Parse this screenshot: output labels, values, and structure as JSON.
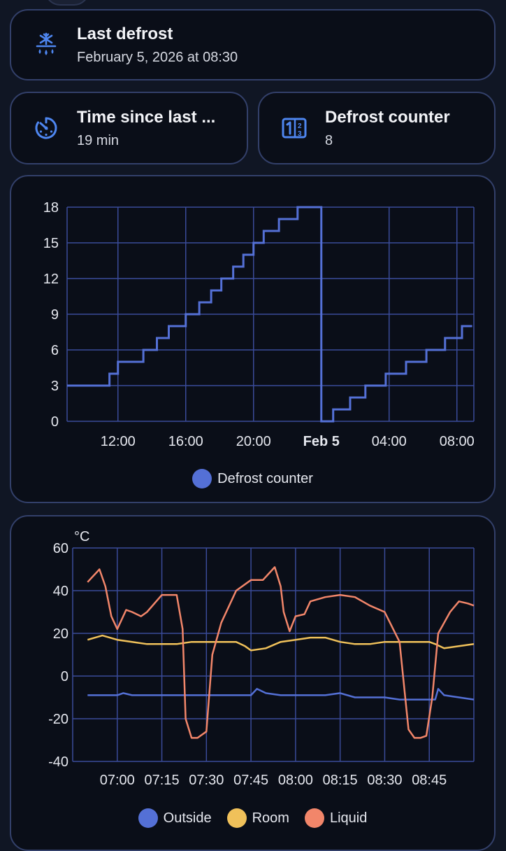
{
  "tiles": {
    "last_defrost": {
      "title": "Last defrost",
      "value": "February 5, 2026 at 08:30",
      "icon": "snowflake-melt-icon"
    },
    "time_since": {
      "title": "Time since last ...",
      "value": "19 min",
      "icon": "timer-icon"
    },
    "defrost_counter": {
      "title": "Defrost counter",
      "value": "8",
      "icon": "counter-icon"
    }
  },
  "colors": {
    "background": "#101624",
    "card": "#0a0e18",
    "border": "#33406a",
    "grid": "#3a4b99",
    "blue": "#5470d6",
    "yellow": "#f0c15a",
    "orange": "#f2866a",
    "icon": "#4e86f0"
  },
  "chart_data": [
    {
      "type": "line",
      "step": true,
      "x_ticks": [
        "12:00",
        "16:00",
        "20:00",
        "Feb 5",
        "04:00",
        "08:00"
      ],
      "x_tick_bold": "Feb 5",
      "ylim": [
        0,
        18
      ],
      "y_ticks": [
        "18",
        "15",
        "12",
        "9",
        "6",
        "3",
        "0"
      ],
      "xlabel": "",
      "ylabel": "",
      "series": [
        {
          "name": "Defrost counter",
          "color": "#5470d6",
          "x_hours": [
            9,
            11.5,
            12.0,
            13.5,
            14.3,
            15.0,
            16.0,
            16.8,
            17.5,
            18.1,
            18.8,
            19.4,
            20.0,
            20.6,
            21.5,
            22.6,
            24.0,
            24.0,
            24.7,
            25.7,
            26.6,
            27.8,
            29.0,
            30.2,
            31.3,
            32.3,
            32.9
          ],
          "values": [
            3,
            4,
            5,
            6,
            7,
            8,
            9,
            10,
            11,
            12,
            13,
            14,
            15,
            16,
            17,
            18,
            0,
            0,
            1,
            2,
            3,
            4,
            5,
            6,
            7,
            8,
            8
          ]
        }
      ],
      "legend": [
        "Defrost counter"
      ],
      "grid": true
    },
    {
      "type": "line",
      "x_ticks": [
        "07:00",
        "07:15",
        "07:30",
        "07:45",
        "08:00",
        "08:15",
        "08:30",
        "08:45"
      ],
      "ylim": [
        -40,
        60
      ],
      "y_ticks": [
        "60",
        "40",
        "20",
        "0",
        "-20",
        "-40"
      ],
      "unit": "°C",
      "grid": true,
      "legend": [
        "Outside",
        "Room",
        "Liquid"
      ],
      "series": [
        {
          "name": "Outside",
          "color": "#5470d6",
          "x_min": [
            410,
            420,
            422,
            425,
            430,
            435,
            440,
            445,
            450,
            455,
            460,
            465,
            467,
            470,
            475,
            478,
            480,
            485,
            490,
            495,
            500,
            505,
            510,
            515,
            520,
            525,
            527,
            528,
            530,
            535,
            540
          ],
          "values": [
            -9,
            -9,
            -8,
            -9,
            -9,
            -9,
            -9,
            -9,
            -9,
            -9,
            -9,
            -9,
            -6,
            -8,
            -9,
            -9,
            -9,
            -9,
            -9,
            -8,
            -10,
            -10,
            -10,
            -11,
            -11,
            -11,
            -11,
            -6,
            -9,
            -10,
            -11
          ]
        },
        {
          "name": "Room",
          "color": "#f0c15a",
          "x_min": [
            410,
            415,
            420,
            425,
            430,
            435,
            440,
            445,
            450,
            455,
            460,
            463,
            465,
            470,
            475,
            480,
            485,
            490,
            495,
            500,
            505,
            510,
            515,
            520,
            525,
            527,
            530,
            535,
            540
          ],
          "values": [
            17,
            19,
            17,
            16,
            15,
            15,
            15,
            16,
            16,
            16,
            16,
            14,
            12,
            13,
            16,
            17,
            18,
            18,
            16,
            15,
            15,
            16,
            16,
            16,
            16,
            15,
            13,
            14,
            15
          ]
        },
        {
          "name": "Liquid",
          "color": "#f2866a",
          "x_min": [
            410,
            414,
            416,
            418,
            420,
            423,
            425,
            428,
            430,
            435,
            440,
            442,
            443,
            445,
            447,
            450,
            452,
            455,
            460,
            465,
            469,
            473,
            475,
            476,
            478,
            480,
            483,
            485,
            490,
            495,
            500,
            505,
            510,
            515,
            518,
            520,
            522,
            524,
            526,
            528,
            530,
            532,
            535,
            538,
            540
          ],
          "values": [
            44,
            50,
            42,
            28,
            22,
            31,
            30,
            28,
            30,
            38,
            38,
            22,
            -20,
            -29,
            -29,
            -26,
            10,
            25,
            40,
            45,
            45,
            51,
            42,
            30,
            21,
            28,
            29,
            35,
            37,
            38,
            37,
            33,
            30,
            16,
            -25,
            -29,
            -29,
            -28,
            -10,
            20,
            25,
            30,
            35,
            34,
            33
          ]
        }
      ]
    }
  ]
}
